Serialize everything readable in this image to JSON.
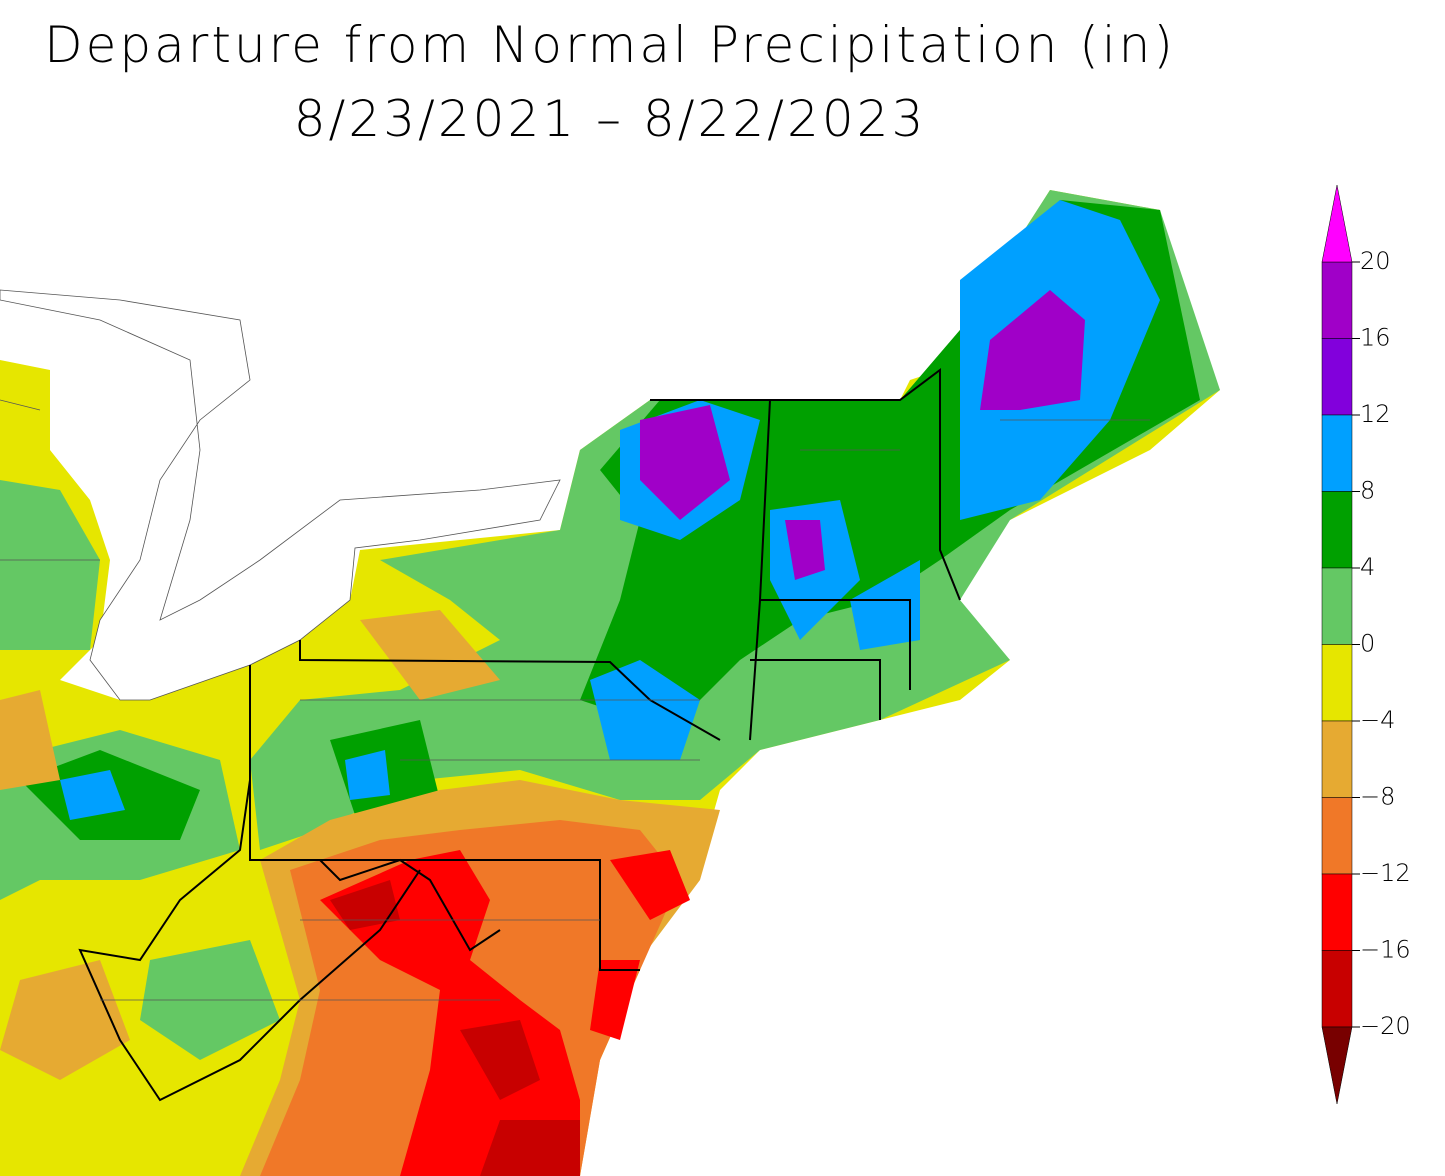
{
  "chart_data": {
    "type": "contour-map",
    "title": "Departure from Normal Precipitation (in)",
    "subtitle": "8/23/2021 – 8/22/2023",
    "colorbar": {
      "levels": [
        {
          "value": 20,
          "label": "20"
        },
        {
          "value": 16,
          "label": "16"
        },
        {
          "value": 12,
          "label": "12"
        },
        {
          "value": 8,
          "label": "8"
        },
        {
          "value": 4,
          "label": "4"
        },
        {
          "value": 0,
          "label": "0"
        },
        {
          "value": -4,
          "label": "−4"
        },
        {
          "value": -8,
          "label": "−8"
        },
        {
          "value": -12,
          "label": "−12"
        },
        {
          "value": -16,
          "label": "−16"
        },
        {
          "value": -20,
          "label": "−20"
        }
      ],
      "colors": [
        "#a000c8",
        "#8200dc",
        "#00a0ff",
        "#00a000",
        "#64c864",
        "#e6e600",
        "#e6aa32",
        "#f07828",
        "#ff0000",
        "#c80000"
      ],
      "over_color": "#ff00ff",
      "under_color": "#780000"
    }
  }
}
